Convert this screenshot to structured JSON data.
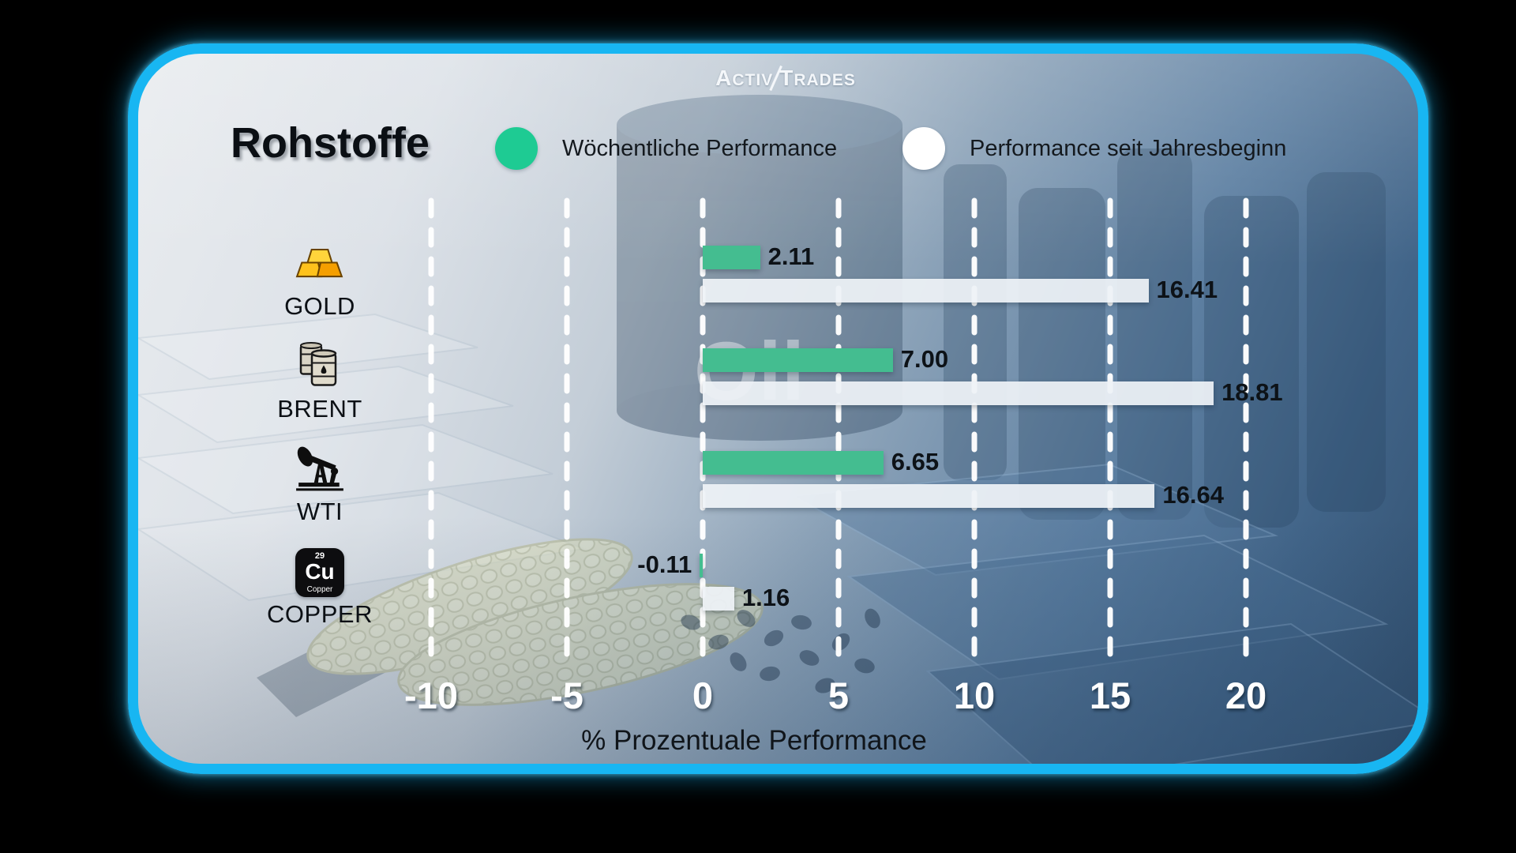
{
  "brand": {
    "l1": "A",
    "l2": "CTIV",
    "l3": "T",
    "l4": "RADES"
  },
  "header": {
    "title": "Rohstoffe"
  },
  "legend": {
    "weekly": {
      "label": "Wöchentliche Performance",
      "color": "#1ecb93"
    },
    "ytd": {
      "label": "Performance seit Jahresbeginn",
      "color": "#ffffff"
    }
  },
  "background": {
    "watermark": "Oil"
  },
  "chart_data": {
    "type": "bar",
    "orientation": "horizontal",
    "title": "Rohstoffe",
    "categories": [
      "GOLD",
      "BRENT",
      "WTI",
      "COPPER"
    ],
    "category_icons": [
      "gold-bars-icon",
      "oil-barrels-icon",
      "oil-pump-jack-icon",
      "copper-element-icon"
    ],
    "series": [
      {
        "name": "Wöchentliche Performance",
        "color": "#44bd90",
        "values": [
          2.11,
          7.0,
          6.65,
          -0.11
        ]
      },
      {
        "name": "Performance seit Jahresbeginn",
        "color": "#e9edf2",
        "values": [
          16.41,
          18.81,
          16.64,
          1.16
        ]
      }
    ],
    "value_labels": [
      [
        "2.11",
        "7.00",
        "6.65",
        "-0.11"
      ],
      [
        "16.41",
        "18.81",
        "16.64",
        "1.16"
      ]
    ],
    "xticks": [
      -10,
      -5,
      0,
      5,
      10,
      15,
      20
    ],
    "xlim": [
      -13,
      24
    ],
    "xlabel": "% Prozentuale Performance",
    "grid": "dashed-vertical-white",
    "legend_position": "top"
  }
}
